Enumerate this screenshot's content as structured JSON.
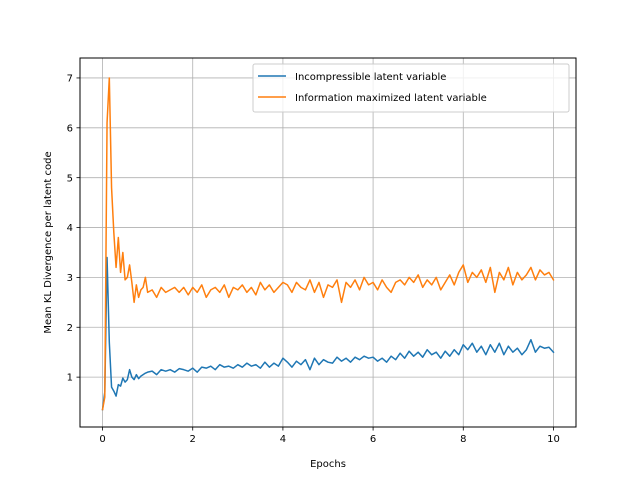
{
  "chart_data": {
    "type": "line",
    "title": "",
    "xlabel": "Epochs",
    "ylabel": "Mean KL Divergence per latent code",
    "xlim": [
      -0.5,
      10.5
    ],
    "ylim": [
      0.0,
      7.4
    ],
    "xticks": [
      0,
      2,
      4,
      6,
      8,
      10
    ],
    "yticks": [
      1,
      2,
      3,
      4,
      5,
      6,
      7
    ],
    "grid": true,
    "legend_position": "top-right",
    "series": [
      {
        "name": "Incompressible latent variable",
        "color": "#1f77b4",
        "x": [
          0.0,
          0.05,
          0.1,
          0.15,
          0.2,
          0.25,
          0.3,
          0.35,
          0.4,
          0.45,
          0.5,
          0.55,
          0.6,
          0.65,
          0.7,
          0.75,
          0.8,
          0.85,
          0.9,
          0.95,
          1.0,
          1.1,
          1.2,
          1.3,
          1.4,
          1.5,
          1.6,
          1.7,
          1.8,
          1.9,
          2.0,
          2.1,
          2.2,
          2.3,
          2.4,
          2.5,
          2.6,
          2.7,
          2.8,
          2.9,
          3.0,
          3.1,
          3.2,
          3.3,
          3.4,
          3.5,
          3.6,
          3.7,
          3.8,
          3.9,
          4.0,
          4.1,
          4.2,
          4.3,
          4.4,
          4.5,
          4.6,
          4.7,
          4.8,
          4.9,
          5.0,
          5.1,
          5.2,
          5.3,
          5.4,
          5.5,
          5.6,
          5.7,
          5.8,
          5.9,
          6.0,
          6.1,
          6.2,
          6.3,
          6.4,
          6.5,
          6.6,
          6.7,
          6.8,
          6.9,
          7.0,
          7.1,
          7.2,
          7.3,
          7.4,
          7.5,
          7.6,
          7.7,
          7.8,
          7.9,
          8.0,
          8.1,
          8.2,
          8.3,
          8.4,
          8.5,
          8.6,
          8.7,
          8.8,
          8.9,
          9.0,
          9.1,
          9.2,
          9.3,
          9.4,
          9.5,
          9.6,
          9.7,
          9.8,
          9.9,
          10.0
        ],
        "y": [
          0.35,
          0.7,
          3.4,
          1.7,
          0.8,
          0.72,
          0.62,
          0.85,
          0.82,
          0.98,
          0.9,
          0.95,
          1.15,
          1.0,
          0.95,
          1.05,
          0.97,
          1.02,
          1.05,
          1.08,
          1.1,
          1.12,
          1.05,
          1.15,
          1.12,
          1.15,
          1.1,
          1.17,
          1.15,
          1.12,
          1.18,
          1.1,
          1.2,
          1.18,
          1.22,
          1.15,
          1.25,
          1.2,
          1.22,
          1.18,
          1.25,
          1.2,
          1.28,
          1.22,
          1.25,
          1.18,
          1.3,
          1.2,
          1.28,
          1.22,
          1.38,
          1.3,
          1.2,
          1.32,
          1.25,
          1.35,
          1.15,
          1.38,
          1.25,
          1.35,
          1.3,
          1.28,
          1.4,
          1.32,
          1.38,
          1.3,
          1.4,
          1.35,
          1.42,
          1.38,
          1.4,
          1.32,
          1.38,
          1.3,
          1.42,
          1.35,
          1.48,
          1.38,
          1.52,
          1.42,
          1.5,
          1.4,
          1.55,
          1.45,
          1.5,
          1.38,
          1.52,
          1.42,
          1.55,
          1.45,
          1.65,
          1.55,
          1.68,
          1.5,
          1.62,
          1.45,
          1.65,
          1.5,
          1.68,
          1.45,
          1.62,
          1.5,
          1.58,
          1.45,
          1.55,
          1.75,
          1.5,
          1.62,
          1.58,
          1.6,
          1.5
        ]
      },
      {
        "name": "Information maximized latent variable",
        "color": "#ff7f0e",
        "x": [
          0.0,
          0.05,
          0.1,
          0.15,
          0.2,
          0.25,
          0.3,
          0.35,
          0.4,
          0.45,
          0.5,
          0.55,
          0.6,
          0.65,
          0.7,
          0.75,
          0.8,
          0.85,
          0.9,
          0.95,
          1.0,
          1.1,
          1.2,
          1.3,
          1.4,
          1.5,
          1.6,
          1.7,
          1.8,
          1.9,
          2.0,
          2.1,
          2.2,
          2.3,
          2.4,
          2.5,
          2.6,
          2.7,
          2.8,
          2.9,
          3.0,
          3.1,
          3.2,
          3.3,
          3.4,
          3.5,
          3.6,
          3.7,
          3.8,
          3.9,
          4.0,
          4.1,
          4.2,
          4.3,
          4.4,
          4.5,
          4.6,
          4.7,
          4.8,
          4.9,
          5.0,
          5.1,
          5.2,
          5.3,
          5.4,
          5.5,
          5.6,
          5.7,
          5.8,
          5.9,
          6.0,
          6.1,
          6.2,
          6.3,
          6.4,
          6.5,
          6.6,
          6.7,
          6.8,
          6.9,
          7.0,
          7.1,
          7.2,
          7.3,
          7.4,
          7.5,
          7.6,
          7.7,
          7.8,
          7.9,
          8.0,
          8.1,
          8.2,
          8.3,
          8.4,
          8.5,
          8.6,
          8.7,
          8.8,
          8.9,
          9.0,
          9.1,
          9.2,
          9.3,
          9.4,
          9.5,
          9.6,
          9.7,
          9.8,
          9.9,
          10.0
        ],
        "y": [
          0.35,
          0.6,
          6.1,
          7.0,
          4.8,
          3.9,
          3.2,
          3.8,
          3.1,
          3.5,
          2.95,
          3.0,
          3.25,
          2.9,
          2.5,
          2.85,
          2.6,
          2.75,
          2.8,
          3.0,
          2.7,
          2.75,
          2.6,
          2.8,
          2.7,
          2.75,
          2.8,
          2.7,
          2.8,
          2.65,
          2.8,
          2.7,
          2.85,
          2.6,
          2.75,
          2.8,
          2.7,
          2.85,
          2.6,
          2.8,
          2.75,
          2.85,
          2.7,
          2.8,
          2.65,
          2.9,
          2.75,
          2.85,
          2.7,
          2.8,
          2.9,
          2.85,
          2.7,
          2.9,
          2.8,
          2.75,
          2.95,
          2.7,
          2.9,
          2.6,
          2.85,
          2.8,
          2.95,
          2.5,
          2.9,
          2.8,
          2.95,
          2.75,
          3.0,
          2.85,
          2.9,
          2.75,
          2.95,
          2.8,
          2.7,
          2.9,
          2.95,
          2.85,
          3.0,
          2.9,
          3.05,
          2.8,
          2.95,
          2.85,
          3.0,
          2.75,
          2.9,
          3.05,
          2.85,
          3.1,
          3.25,
          2.9,
          3.1,
          3.0,
          3.15,
          2.9,
          3.2,
          2.7,
          3.1,
          2.95,
          3.2,
          2.85,
          3.1,
          2.95,
          3.05,
          3.2,
          2.95,
          3.15,
          3.05,
          3.1,
          2.95
        ]
      }
    ]
  }
}
